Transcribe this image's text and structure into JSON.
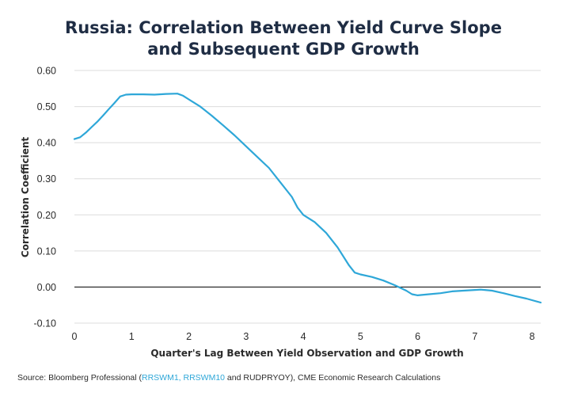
{
  "chart_data": {
    "type": "line",
    "title": [
      "Russia: Correlation Between Yield Curve Slope",
      "and Subsequent GDP Growth"
    ],
    "xlabel": "Quarter's Lag Between Yield Observation and GDP Growth",
    "ylabel": "Correlation Coefficient",
    "xlim": [
      0,
      8.15
    ],
    "ylim": [
      -0.1,
      0.6
    ],
    "xticks": [
      "0",
      "1",
      "2",
      "3",
      "4",
      "5",
      "6",
      "7",
      "8"
    ],
    "yticks": [
      "0.60",
      "0.50",
      "0.40",
      "0.30",
      "0.20",
      "0.10",
      "0.00",
      "-0.10"
    ],
    "grid": true,
    "line_color": "#2ea7d8",
    "series": [
      {
        "name": "Correlation",
        "x": [
          0.0,
          0.1,
          0.2,
          0.3,
          0.4,
          0.5,
          0.6,
          0.7,
          0.8,
          0.9,
          1.0,
          1.2,
          1.4,
          1.6,
          1.8,
          1.9,
          2.0,
          2.2,
          2.4,
          2.6,
          2.8,
          3.0,
          3.2,
          3.4,
          3.6,
          3.8,
          3.9,
          4.0,
          4.2,
          4.4,
          4.6,
          4.8,
          4.9,
          5.0,
          5.2,
          5.4,
          5.6,
          5.8,
          5.9,
          6.0,
          6.2,
          6.4,
          6.6,
          6.8,
          7.0,
          7.1,
          7.3,
          7.5,
          7.7,
          7.9,
          8.15
        ],
        "values": [
          0.41,
          0.415,
          0.428,
          0.443,
          0.458,
          0.475,
          0.493,
          0.51,
          0.528,
          0.533,
          0.534,
          0.534,
          0.533,
          0.535,
          0.536,
          0.53,
          0.52,
          0.5,
          0.475,
          0.448,
          0.42,
          0.39,
          0.36,
          0.33,
          0.29,
          0.25,
          0.22,
          0.2,
          0.18,
          0.15,
          0.11,
          0.06,
          0.04,
          0.035,
          0.028,
          0.018,
          0.005,
          -0.01,
          -0.02,
          -0.023,
          -0.02,
          -0.017,
          -0.012,
          -0.01,
          -0.008,
          -0.007,
          -0.01,
          -0.017,
          -0.025,
          -0.032,
          -0.043
        ]
      }
    ],
    "reference_line": 0.0
  },
  "source": {
    "prefix": "Source: Bloomberg Professional (",
    "link_text": "RRSWM1, RRSWM10",
    "suffix": " and RUDPRYOY), CME Economic Research Calculations"
  }
}
